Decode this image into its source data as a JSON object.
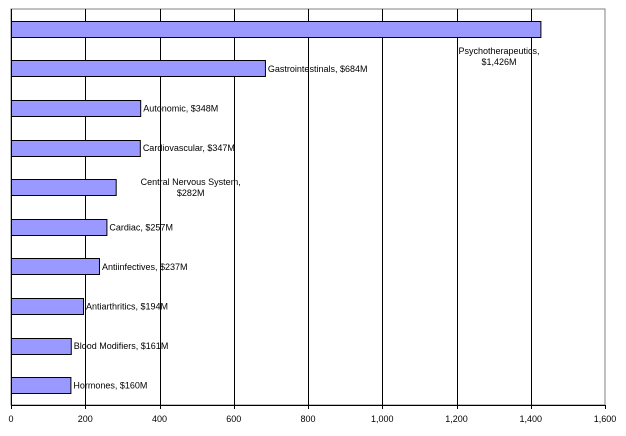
{
  "chart_data": {
    "type": "bar",
    "orientation": "horizontal",
    "title": "",
    "xlabel": "",
    "ylabel": "",
    "xlim": [
      0,
      1600
    ],
    "xticks": [
      0,
      200,
      400,
      600,
      800,
      1000,
      1200,
      1400,
      1600
    ],
    "xtick_labels": [
      "0",
      "200",
      "400",
      "600",
      "800",
      "1,000",
      "1,200",
      "1,400",
      "1,600"
    ],
    "grid": "vertical major gridlines",
    "legend": "none",
    "bar_color": "#9999ff",
    "categories": [
      "Psychotherapeutics",
      "Gastrointestinals",
      "Autonomic",
      "Cardiovascular",
      "Central Nervous System",
      "Cardiac",
      "Antiinfectives",
      "Antiarthritics",
      "Blood Modifiers",
      "Hormones"
    ],
    "values": [
      1426,
      684,
      348,
      347,
      282,
      257,
      237,
      194,
      161,
      160
    ],
    "data_labels": [
      [
        "Psychotherapeutics,",
        "$1,426M"
      ],
      [
        "Gastrointestinals, $684M"
      ],
      [
        "Autonomic, $348M"
      ],
      [
        "Cardiovascular, $347M"
      ],
      [
        "Central Nervous System,",
        "$282M"
      ],
      [
        "Cardiac, $257M"
      ],
      [
        "Antiinfectives, $237M"
      ],
      [
        "Antiarthritics, $194M"
      ],
      [
        "Blood Modifiers, $161M"
      ],
      [
        "Hormones, $160M"
      ]
    ]
  }
}
